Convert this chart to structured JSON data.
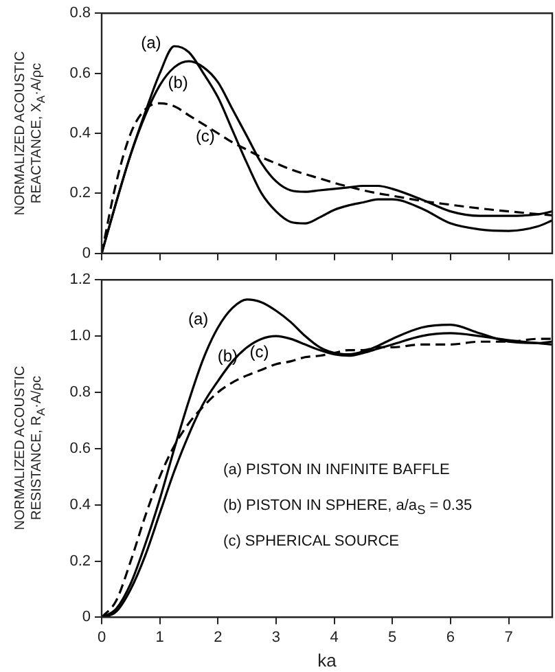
{
  "chart_data": [
    {
      "type": "line",
      "ylabel": "NORMALIZED ACOUSTIC\nREACTANCE, X$_{A}$·A/ρc",
      "xlim": [
        0,
        7.75
      ],
      "xticks": [
        0,
        1,
        2,
        3,
        4,
        5,
        6,
        7
      ],
      "ylim": [
        0,
        0.8
      ],
      "yticks": [
        0,
        0.2,
        0.4,
        0.6,
        0.8
      ],
      "tick_labels": "y",
      "grid": false,
      "legend": false,
      "marker": "none",
      "x": [
        0,
        0.25,
        0.5,
        0.75,
        1,
        1.25,
        1.5,
        1.75,
        2,
        2.25,
        2.5,
        2.75,
        3,
        3.25,
        3.5,
        3.75,
        4,
        4.25,
        4.5,
        4.75,
        5,
        5.5,
        6,
        6.5,
        7,
        7.5,
        7.75
      ],
      "series": [
        {
          "name": "(a)",
          "color": "#000000",
          "line_style": "solid",
          "values": [
            0,
            0.17,
            0.33,
            0.47,
            0.6,
            0.69,
            0.67,
            0.6,
            0.52,
            0.41,
            0.3,
            0.2,
            0.14,
            0.105,
            0.1,
            0.12,
            0.145,
            0.16,
            0.17,
            0.18,
            0.18,
            0.15,
            0.1,
            0.08,
            0.075,
            0.09,
            0.11
          ]
        },
        {
          "name": "(b)",
          "color": "#000000",
          "line_style": "solid",
          "values": [
            0,
            0.17,
            0.33,
            0.46,
            0.56,
            0.62,
            0.64,
            0.62,
            0.57,
            0.48,
            0.39,
            0.3,
            0.24,
            0.21,
            0.205,
            0.21,
            0.215,
            0.22,
            0.225,
            0.225,
            0.215,
            0.18,
            0.14,
            0.125,
            0.125,
            0.13,
            0.14
          ]
        },
        {
          "name": "(c)",
          "color": "#000000",
          "line_style": "dashed",
          "values": [
            0,
            0.235,
            0.4,
            0.48,
            0.5,
            0.49,
            0.46,
            0.43,
            0.4,
            0.37,
            0.345,
            0.32,
            0.3,
            0.28,
            0.264,
            0.25,
            0.235,
            0.222,
            0.21,
            0.2,
            0.192,
            0.175,
            0.162,
            0.15,
            0.14,
            0.131,
            0.127
          ]
        }
      ]
    },
    {
      "type": "line",
      "xlabel": "ka",
      "ylabel": "NORMALIZED ACOUSTIC\nRESISTANCE, R$_{A}$·A/ρc",
      "xlim": [
        0,
        7.75
      ],
      "xticks": [
        0,
        1,
        2,
        3,
        4,
        5,
        6,
        7
      ],
      "ylim": [
        0,
        1.2
      ],
      "yticks": [
        0,
        0.2,
        0.4,
        0.6,
        0.8,
        {
          "value": 1,
          "label": "1.0"
        },
        1.2
      ],
      "grid": false,
      "legend": false,
      "marker": "none",
      "x": [
        0,
        0.25,
        0.5,
        0.75,
        1,
        1.25,
        1.5,
        1.75,
        2,
        2.25,
        2.5,
        2.75,
        3,
        3.25,
        3.5,
        3.75,
        4,
        4.25,
        4.5,
        4.75,
        5,
        5.5,
        6,
        6.5,
        7,
        7.5,
        7.75
      ],
      "series": [
        {
          "name": "(a)",
          "color": "#000000",
          "line_style": "solid",
          "values": [
            0,
            0.03,
            0.12,
            0.26,
            0.42,
            0.6,
            0.77,
            0.92,
            1.03,
            1.1,
            1.13,
            1.12,
            1.09,
            1.05,
            1.0,
            0.96,
            0.94,
            0.935,
            0.945,
            0.965,
            0.99,
            1.03,
            1.04,
            1.01,
            0.98,
            0.975,
            0.98
          ]
        },
        {
          "name": "(b)",
          "color": "#000000",
          "line_style": "solid",
          "values": [
            0,
            0.02,
            0.1,
            0.22,
            0.37,
            0.52,
            0.65,
            0.76,
            0.84,
            0.91,
            0.96,
            0.99,
            1.0,
            0.99,
            0.97,
            0.95,
            0.935,
            0.93,
            0.94,
            0.955,
            0.97,
            1.0,
            1.01,
            1.0,
            0.985,
            0.975,
            0.97
          ]
        },
        {
          "name": "(c)",
          "color": "#000000",
          "line_style": "dashed",
          "values": [
            0,
            0.059,
            0.2,
            0.36,
            0.5,
            0.61,
            0.69,
            0.75,
            0.8,
            0.835,
            0.86,
            0.88,
            0.9,
            0.91,
            0.925,
            0.93,
            0.94,
            0.95,
            0.95,
            0.96,
            0.96,
            0.97,
            0.97,
            0.98,
            0.98,
            0.99,
            0.99
          ]
        }
      ],
      "annotations": [
        "(a) PISTON IN INFINITE BAFFLE",
        "(b) PISTON IN SPHERE, a/a$_{S}$ = 0.35",
        "(c) SPHERICAL SOURCE"
      ]
    }
  ]
}
